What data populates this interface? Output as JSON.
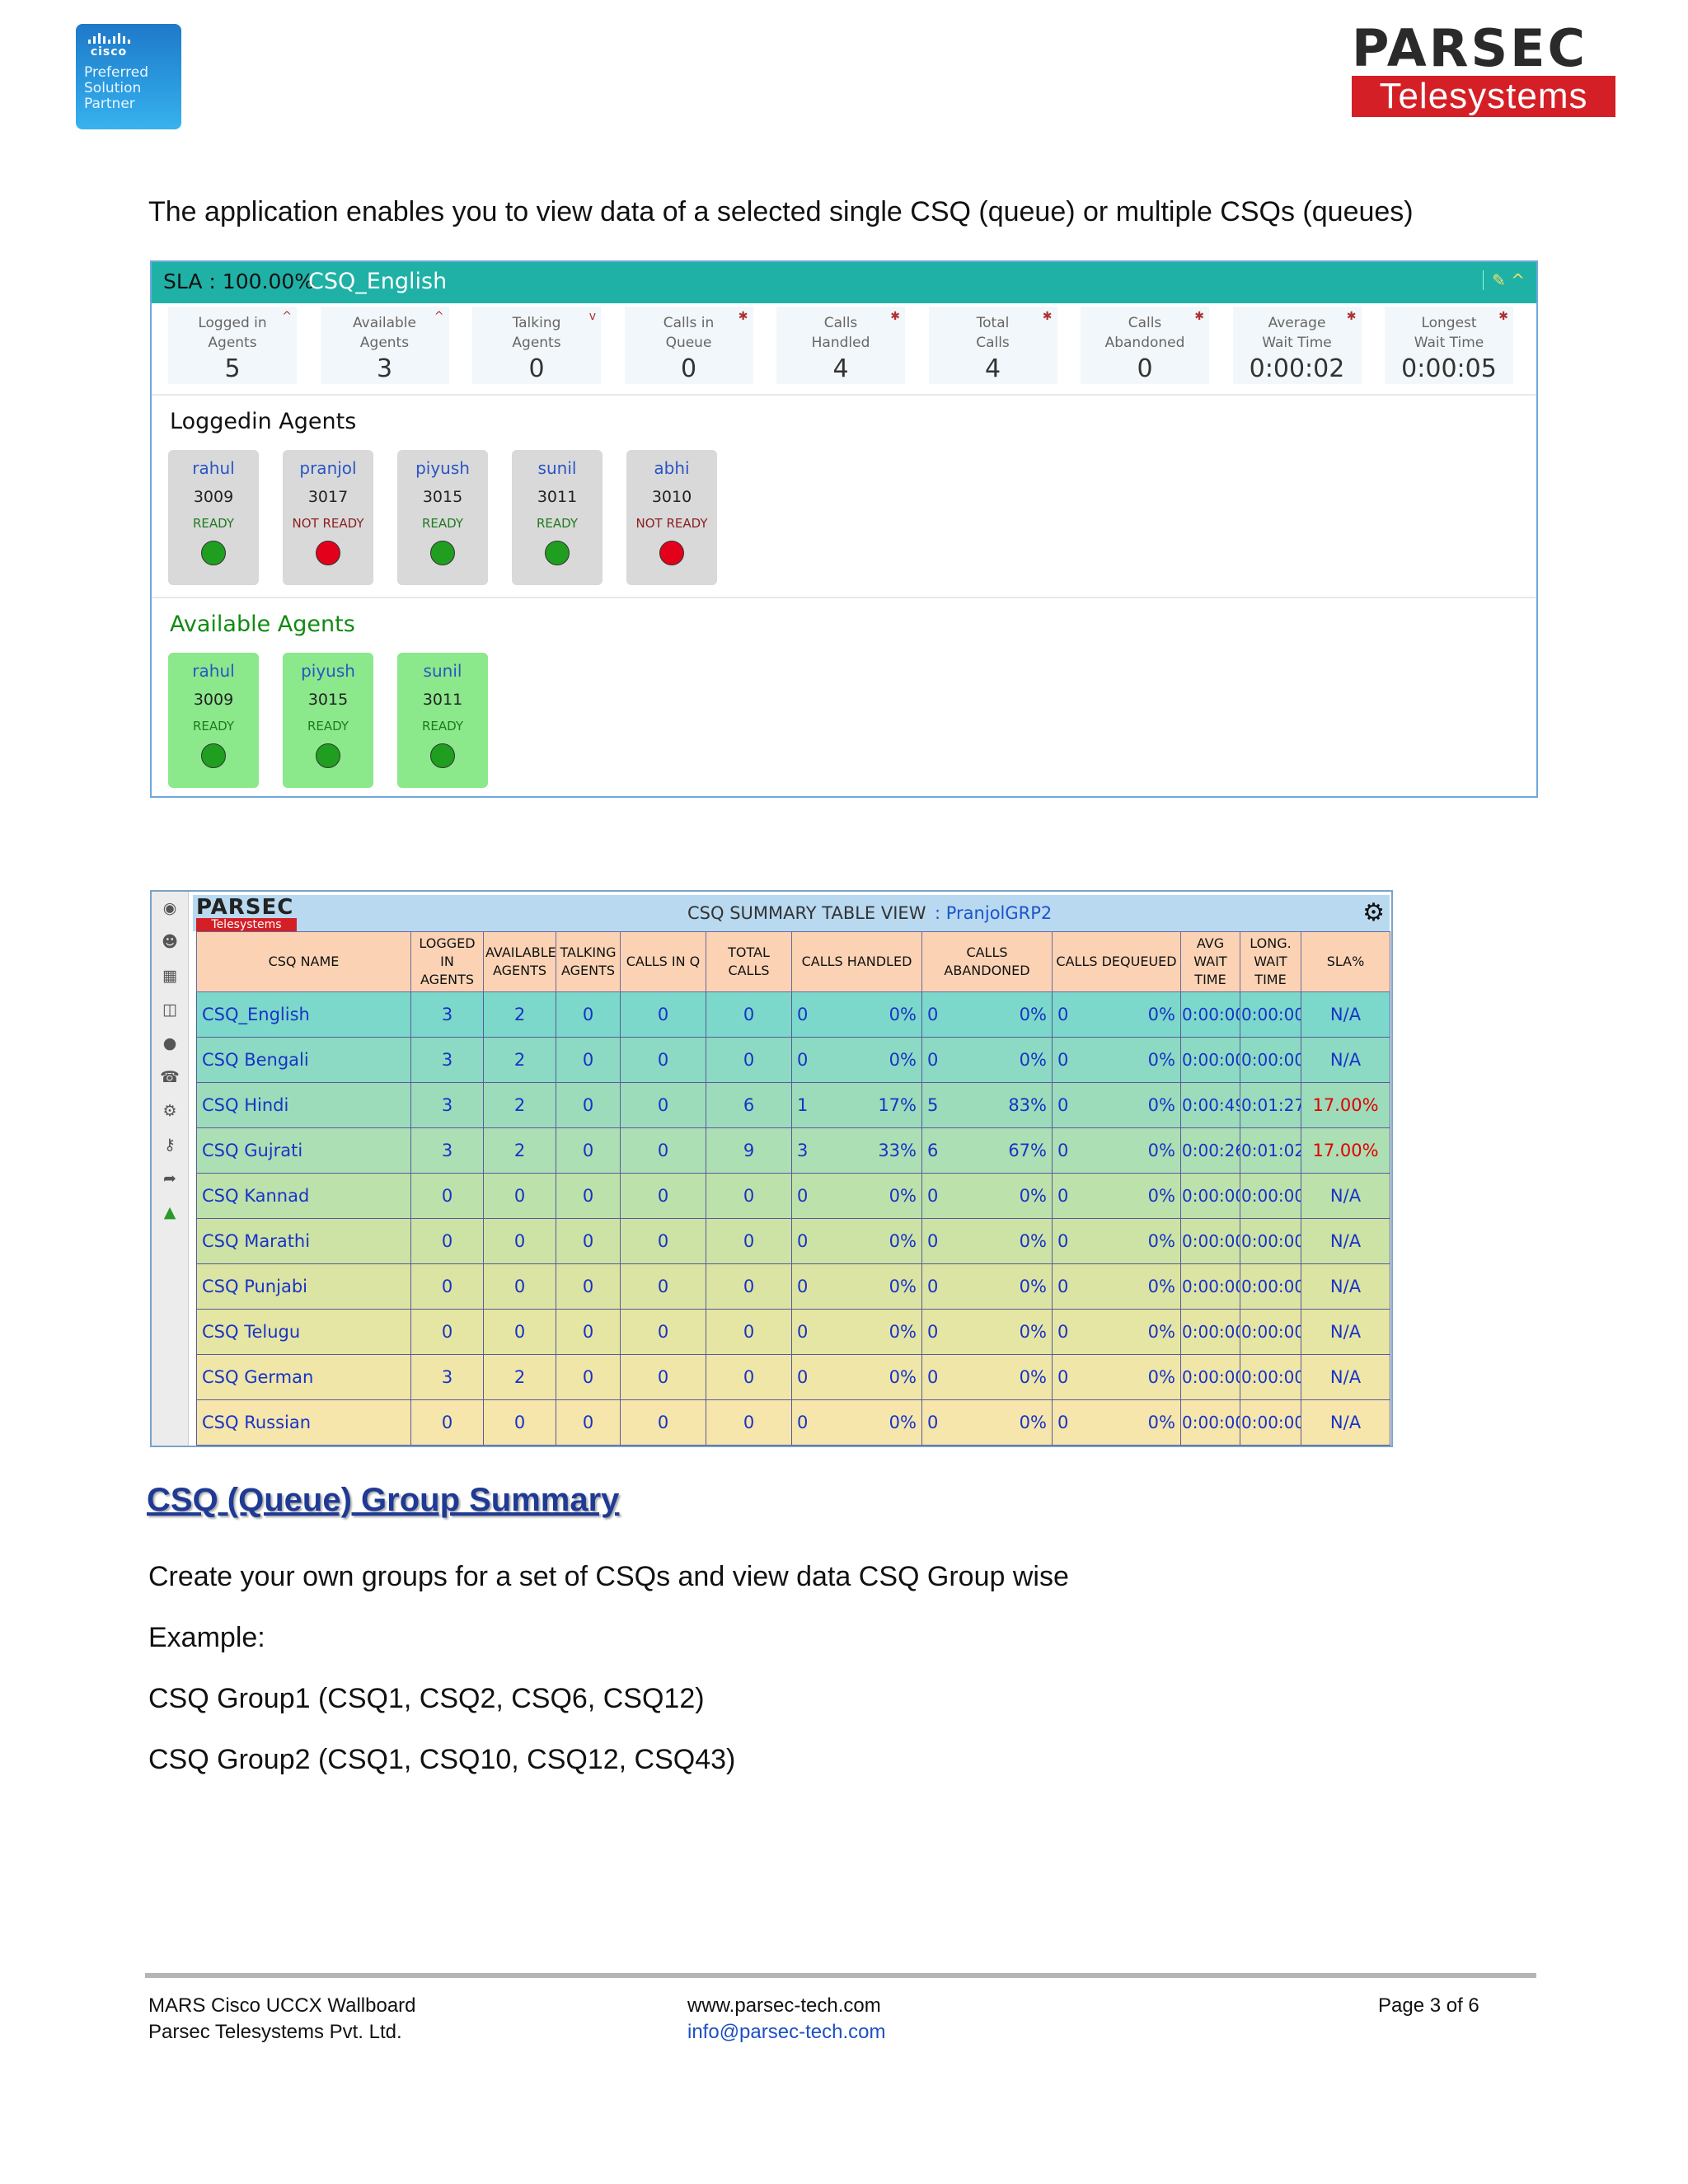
{
  "cisco_logo": {
    "brand": "cisco",
    "line1": "Preferred",
    "line2": "Solution",
    "line3": "Partner"
  },
  "parsec_logo": {
    "line1": "PARSEC",
    "line2": "Telesystems"
  },
  "intro": "The application enables you to view data of a selected single CSQ (queue) or multiple CSQs (queues)",
  "panel1": {
    "sla": "SLA : 100.00%",
    "csq_name": "CSQ_English",
    "stats": [
      {
        "l1": "Logged in",
        "l2": "Agents",
        "value": "5",
        "mark": "^"
      },
      {
        "l1": "Available",
        "l2": "Agents",
        "value": "3",
        "mark": "^"
      },
      {
        "l1": "Talking",
        "l2": "Agents",
        "value": "0",
        "mark": "v"
      },
      {
        "l1": "Calls in",
        "l2": "Queue",
        "value": "0",
        "mark": "✱"
      },
      {
        "l1": "Calls",
        "l2": "Handled",
        "value": "4",
        "mark": "✱"
      },
      {
        "l1": "Total",
        "l2": "Calls",
        "value": "4",
        "mark": "✱"
      },
      {
        "l1": "Calls",
        "l2": "Abandoned",
        "value": "0",
        "mark": "✱"
      },
      {
        "l1": "Average",
        "l2": "Wait Time",
        "value": "0:00:02",
        "mark": "✱"
      },
      {
        "l1": "Longest",
        "l2": "Wait Time",
        "value": "0:00:05",
        "mark": "✱"
      }
    ],
    "loggedin_title": "Loggedin Agents",
    "loggedin": [
      {
        "name": "rahul",
        "ext": "3009",
        "state": "READY"
      },
      {
        "name": "pranjol",
        "ext": "3017",
        "state": "NOT READY"
      },
      {
        "name": "piyush",
        "ext": "3015",
        "state": "READY"
      },
      {
        "name": "sunil",
        "ext": "3011",
        "state": "READY"
      },
      {
        "name": "abhi",
        "ext": "3010",
        "state": "NOT READY"
      }
    ],
    "available_title": "Available Agents",
    "available": [
      {
        "name": "rahul",
        "ext": "3009",
        "state": "READY"
      },
      {
        "name": "piyush",
        "ext": "3015",
        "state": "READY"
      },
      {
        "name": "sunil",
        "ext": "3011",
        "state": "READY"
      }
    ],
    "colors": {
      "ready": "#1f9e1f",
      "not_ready": "#e3001b",
      "header": "#1fb1a6"
    }
  },
  "panel2": {
    "logo1": "PARSEC",
    "logo2": "Telesystems",
    "title": "CSQ SUMMARY TABLE VIEW",
    "group": ":   PranjolGRP2",
    "headers": [
      "CSQ NAME",
      "LOGGED IN AGENTS",
      "AVAILABLE AGENTS",
      "TALKING AGENTS",
      "CALLS IN Q",
      "TOTAL CALLS",
      "CALLS HANDLED",
      "CALLS ABANDONED",
      "CALLS DEQUEUED",
      "AVG WAIT TIME",
      "LONG. WAIT TIME",
      "SLA%"
    ],
    "rows": [
      {
        "name": "CSQ_English",
        "logged": "3",
        "avail": "2",
        "talk": "0",
        "inq": "0",
        "total": "0",
        "h": "0",
        "hp": "0%",
        "a": "0",
        "ap": "0%",
        "d": "0",
        "dp": "0%",
        "avg": "0:00:00",
        "lng": "0:00:00",
        "sla": "N/A"
      },
      {
        "name": "CSQ Bengali",
        "logged": "3",
        "avail": "2",
        "talk": "0",
        "inq": "0",
        "total": "0",
        "h": "0",
        "hp": "0%",
        "a": "0",
        "ap": "0%",
        "d": "0",
        "dp": "0%",
        "avg": "0:00:00",
        "lng": "0:00:00",
        "sla": "N/A"
      },
      {
        "name": "CSQ Hindi",
        "logged": "3",
        "avail": "2",
        "talk": "0",
        "inq": "0",
        "total": "6",
        "h": "1",
        "hp": "17%",
        "a": "5",
        "ap": "83%",
        "d": "0",
        "dp": "0%",
        "avg": "0:00:49",
        "lng": "0:01:27",
        "sla": "17.00%"
      },
      {
        "name": "CSQ Gujrati",
        "logged": "3",
        "avail": "2",
        "talk": "0",
        "inq": "0",
        "total": "9",
        "h": "3",
        "hp": "33%",
        "a": "6",
        "ap": "67%",
        "d": "0",
        "dp": "0%",
        "avg": "0:00:26",
        "lng": "0:01:02",
        "sla": "17.00%"
      },
      {
        "name": "CSQ Kannad",
        "logged": "0",
        "avail": "0",
        "talk": "0",
        "inq": "0",
        "total": "0",
        "h": "0",
        "hp": "0%",
        "a": "0",
        "ap": "0%",
        "d": "0",
        "dp": "0%",
        "avg": "0:00:00",
        "lng": "0:00:00",
        "sla": "N/A"
      },
      {
        "name": "CSQ Marathi",
        "logged": "0",
        "avail": "0",
        "talk": "0",
        "inq": "0",
        "total": "0",
        "h": "0",
        "hp": "0%",
        "a": "0",
        "ap": "0%",
        "d": "0",
        "dp": "0%",
        "avg": "0:00:00",
        "lng": "0:00:00",
        "sla": "N/A"
      },
      {
        "name": "CSQ Punjabi",
        "logged": "0",
        "avail": "0",
        "talk": "0",
        "inq": "0",
        "total": "0",
        "h": "0",
        "hp": "0%",
        "a": "0",
        "ap": "0%",
        "d": "0",
        "dp": "0%",
        "avg": "0:00:00",
        "lng": "0:00:00",
        "sla": "N/A"
      },
      {
        "name": "CSQ Telugu",
        "logged": "0",
        "avail": "0",
        "talk": "0",
        "inq": "0",
        "total": "0",
        "h": "0",
        "hp": "0%",
        "a": "0",
        "ap": "0%",
        "d": "0",
        "dp": "0%",
        "avg": "0:00:00",
        "lng": "0:00:00",
        "sla": "N/A"
      },
      {
        "name": "CSQ German",
        "logged": "3",
        "avail": "2",
        "talk": "0",
        "inq": "0",
        "total": "0",
        "h": "0",
        "hp": "0%",
        "a": "0",
        "ap": "0%",
        "d": "0",
        "dp": "0%",
        "avg": "0:00:00",
        "lng": "0:00:00",
        "sla": "N/A"
      },
      {
        "name": "CSQ Russian",
        "logged": "0",
        "avail": "0",
        "talk": "0",
        "inq": "0",
        "total": "0",
        "h": "0",
        "hp": "0%",
        "a": "0",
        "ap": "0%",
        "d": "0",
        "dp": "0%",
        "avg": "0:00:00",
        "lng": "0:00:00",
        "sla": "N/A"
      }
    ],
    "row_colors": [
      "#7cd8cb",
      "#8cdac3",
      "#9cdcbb",
      "#acdfb3",
      "#bde1ab",
      "#cde3a5",
      "#dbe4a2",
      "#e6e6a4",
      "#efe6a8",
      "#f6e6ab"
    ]
  },
  "section": {
    "heading": "CSQ (Queue) Group Summary",
    "p1": "Create your own groups for a set of CSQs and view data CSQ Group wise",
    "p2": "Example:",
    "p3": "CSQ Group1 (CSQ1, CSQ2, CSQ6, CSQ12)",
    "p4": "CSQ Group2 (CSQ1, CSQ10, CSQ12, CSQ43)"
  },
  "footer": {
    "left1": "MARS Cisco UCCX Wallboard",
    "left2": "Parsec Telesystems Pvt. Ltd.",
    "mid1": "www.parsec-tech.com",
    "mid2": "info@parsec-tech.com",
    "right": "Page 3 of 6"
  }
}
